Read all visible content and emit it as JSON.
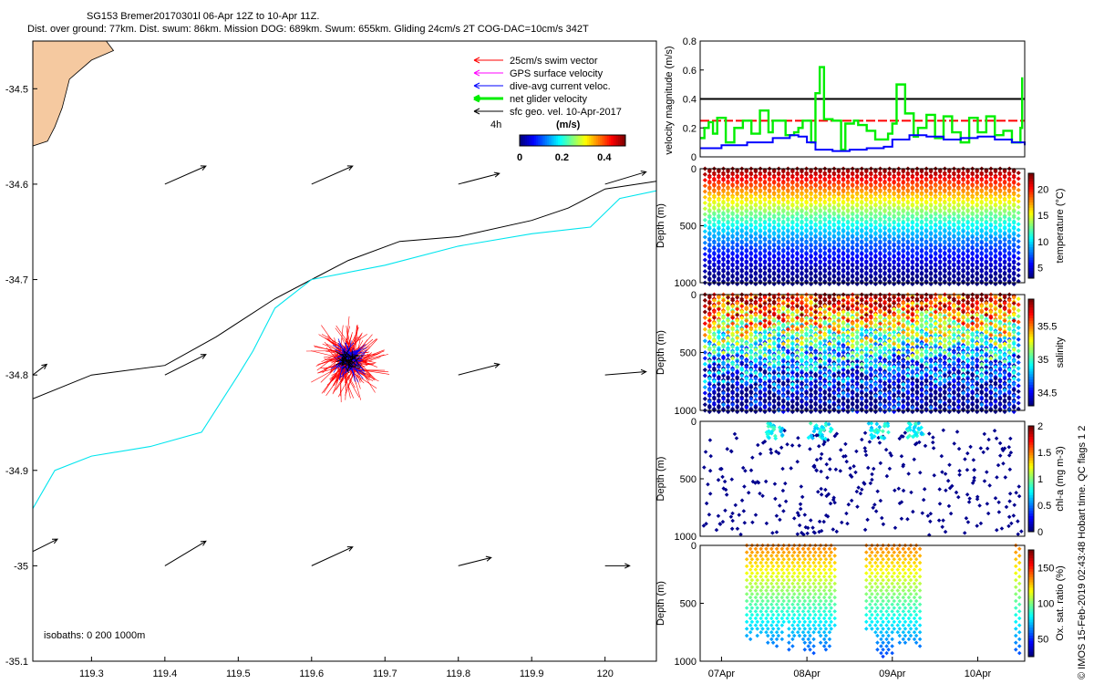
{
  "header": {
    "title_line1": "SG153 Bremer20170301l 06-Apr 12Z to 10-Apr 11Z.",
    "title_line2": "Dist. over ground: 77km. Dist. swum: 86km. Mission DOG: 689km. Swum: 655km. Gliding 24cm/s 2T COG-DAC=10cm/s 342T"
  },
  "credit": "© IMOS 15-Feb-2019 02:43:48 Hobart time. QC flags 1  2",
  "colors": {
    "swim": "#ff0000",
    "gps": "#ff00ff",
    "dac": "#0000ff",
    "net": "#00ee00",
    "geo": "#000000",
    "land": "#f5c9a0",
    "isobath": "#00e5ee"
  },
  "chart_data": [
    {
      "type": "map",
      "xlim": [
        119.22,
        120.07
      ],
      "ylim": [
        -35.1,
        -34.45
      ],
      "x_ticks": [
        "119.3",
        "119.4",
        "119.5",
        "119.6",
        "119.7",
        "119.8",
        "119.9",
        "120"
      ],
      "y_ticks": [
        "-34.5",
        "-34.6",
        "-34.7",
        "-34.8",
        "-34.9",
        "-35",
        "-35.1"
      ],
      "legend": [
        {
          "label": "25cm/s swim vector",
          "color": "#ff0000"
        },
        {
          "label": "GPS surface velocity",
          "color": "#ff00ff"
        },
        {
          "label": "dive-avg current veloc.",
          "color": "#0000ff"
        },
        {
          "label": "net glider velocity",
          "color": "#00ee00"
        },
        {
          "label": "sfc geo. vel. 10-Apr-2017",
          "color": "#000000"
        }
      ],
      "legend_note": "4h",
      "colorbar": {
        "title": "(m/s)",
        "ticks": [
          "0",
          "0.2",
          "0.4"
        ],
        "range": [
          0,
          0.5
        ]
      },
      "isobath_label": "isobaths: 0   200  1000m",
      "isobath_200": [
        [
          119.22,
          -34.825
        ],
        [
          119.3,
          -34.8
        ],
        [
          119.4,
          -34.79
        ],
        [
          119.47,
          -34.76
        ],
        [
          119.55,
          -34.72
        ],
        [
          119.6,
          -34.7
        ],
        [
          119.65,
          -34.68
        ],
        [
          119.72,
          -34.66
        ],
        [
          119.8,
          -34.655
        ],
        [
          119.9,
          -34.638
        ],
        [
          119.95,
          -34.625
        ],
        [
          120.0,
          -34.605
        ],
        [
          120.07,
          -34.597
        ]
      ],
      "isobath_1000": [
        [
          119.22,
          -34.94
        ],
        [
          119.25,
          -34.9
        ],
        [
          119.3,
          -34.885
        ],
        [
          119.38,
          -34.875
        ],
        [
          119.45,
          -34.86
        ],
        [
          119.5,
          -34.8
        ],
        [
          119.52,
          -34.775
        ],
        [
          119.55,
          -34.73
        ],
        [
          119.6,
          -34.7
        ],
        [
          119.7,
          -34.685
        ],
        [
          119.8,
          -34.665
        ],
        [
          119.9,
          -34.652
        ],
        [
          119.98,
          -34.645
        ],
        [
          120.02,
          -34.615
        ],
        [
          120.07,
          -34.607
        ]
      ],
      "coast": [
        [
          119.22,
          -34.45
        ],
        [
          119.32,
          -34.45
        ],
        [
          119.33,
          -34.46
        ],
        [
          119.3,
          -34.47
        ],
        [
          119.27,
          -34.49
        ],
        [
          119.26,
          -34.52
        ],
        [
          119.25,
          -34.54
        ],
        [
          119.24,
          -34.555
        ],
        [
          119.22,
          -34.56
        ]
      ],
      "geo_arrows": [
        {
          "lon": 119.4,
          "lat": -34.6,
          "u": 0.5,
          "v": 0.22
        },
        {
          "lon": 119.6,
          "lat": -34.6,
          "u": 0.5,
          "v": 0.22
        },
        {
          "lon": 119.8,
          "lat": -34.6,
          "u": 0.5,
          "v": 0.13
        },
        {
          "lon": 120.0,
          "lat": -34.6,
          "u": 0.5,
          "v": 0.15
        },
        {
          "lon": 119.22,
          "lat": -34.8,
          "u": 0.17,
          "v": 0.13
        },
        {
          "lon": 119.4,
          "lat": -34.8,
          "u": 0.5,
          "v": 0.25
        },
        {
          "lon": 119.8,
          "lat": -34.8,
          "u": 0.5,
          "v": 0.13
        },
        {
          "lon": 120.0,
          "lat": -34.8,
          "u": 0.5,
          "v": 0.04
        },
        {
          "lon": 119.22,
          "lat": -34.985,
          "u": 0.3,
          "v": 0.15
        },
        {
          "lon": 119.4,
          "lat": -35.0,
          "u": 0.5,
          "v": 0.3
        },
        {
          "lon": 119.6,
          "lat": -35.0,
          "u": 0.5,
          "v": 0.23
        },
        {
          "lon": 119.8,
          "lat": -35.0,
          "u": 0.4,
          "v": 0.1
        },
        {
          "lon": 120.0,
          "lat": -35.0,
          "u": 0.3,
          "v": 0.0
        }
      ],
      "glider_center": {
        "lon": 119.65,
        "lat": -34.785
      }
    },
    {
      "type": "line",
      "ylabel": "velocity magnitude (m/s)",
      "ylim": [
        0,
        0.8
      ],
      "y_ticks": [
        "0",
        "0.2",
        "0.4",
        "0.6",
        "0.8"
      ],
      "x_range_days": [
        6.75,
        10.55
      ],
      "x_ticks": [
        "07Apr",
        "08Apr",
        "09Apr",
        "10Apr"
      ],
      "reference_lines": [
        {
          "value": 0.4,
          "color": "#000000"
        },
        {
          "value": 0.25,
          "color": "#ff0000"
        }
      ],
      "series": [
        {
          "name": "net glider velocity",
          "color": "#00ee00",
          "x": [
            6.75,
            6.8,
            6.85,
            6.9,
            6.95,
            7.05,
            7.15,
            7.25,
            7.35,
            7.45,
            7.55,
            7.6,
            7.65,
            7.75,
            7.85,
            7.9,
            7.95,
            8.05,
            8.1,
            8.15,
            8.2,
            8.3,
            8.4,
            8.45,
            8.55,
            8.6,
            8.7,
            8.8,
            8.85,
            8.95,
            9.0,
            9.05,
            9.15,
            9.25,
            9.3,
            9.4,
            9.5,
            9.6,
            9.7,
            9.8,
            9.9,
            10.0,
            10.1,
            10.2,
            10.3,
            10.4,
            10.5,
            10.52
          ],
          "values": [
            0.13,
            0.2,
            0.24,
            0.16,
            0.27,
            0.1,
            0.2,
            0.25,
            0.16,
            0.32,
            0.17,
            0.25,
            0.25,
            0.15,
            0.17,
            0.2,
            0.25,
            0.1,
            0.44,
            0.62,
            0.26,
            0.25,
            0.05,
            0.23,
            0.25,
            0.22,
            0.18,
            0.12,
            0.12,
            0.16,
            0.23,
            0.5,
            0.3,
            0.14,
            0.2,
            0.29,
            0.13,
            0.28,
            0.17,
            0.1,
            0.27,
            0.17,
            0.28,
            0.15,
            0.18,
            0.1,
            0.2,
            0.55
          ]
        },
        {
          "name": "dive-avg current",
          "color": "#0000ff",
          "x": [
            6.75,
            7.0,
            7.3,
            7.6,
            7.8,
            7.9,
            8.0,
            8.1,
            8.3,
            8.5,
            8.7,
            8.8,
            8.9,
            9.0,
            9.2,
            9.4,
            9.6,
            9.8,
            10.0,
            10.2,
            10.4,
            10.55
          ],
          "values": [
            0.06,
            0.08,
            0.1,
            0.13,
            0.15,
            0.14,
            0.1,
            0.05,
            0.04,
            0.05,
            0.06,
            0.06,
            0.07,
            0.12,
            0.15,
            0.14,
            0.12,
            0.13,
            0.14,
            0.12,
            0.1,
            0.08
          ]
        }
      ]
    },
    {
      "type": "scatter",
      "variable": "temperature",
      "ylabel": "Depth (m)",
      "ylim": [
        0,
        1000
      ],
      "y_ticks": [
        "0",
        "500",
        "1000"
      ],
      "colorbar_label": "temperature (°C)",
      "colorbar_ticks": [
        "5",
        "10",
        "15",
        "20"
      ],
      "color_range": [
        3,
        23
      ],
      "profile_count": 34,
      "profile_depth": 1000
    },
    {
      "type": "scatter",
      "variable": "salinity",
      "ylabel": "Depth (m)",
      "ylim": [
        0,
        1000
      ],
      "y_ticks": [
        "0",
        "500",
        "1000"
      ],
      "colorbar_label": "salinity",
      "colorbar_ticks": [
        "34.5",
        "35",
        "35.5"
      ],
      "color_range": [
        34.3,
        35.9
      ],
      "profile_count": 34,
      "profile_depth": 1000
    },
    {
      "type": "scatter",
      "variable": "chl-a",
      "ylabel": "Depth (m)",
      "ylim": [
        0,
        1000
      ],
      "y_ticks": [
        "0",
        "500",
        "1000"
      ],
      "colorbar_label": "chl-a (mg m-3)",
      "colorbar_ticks": [
        "0",
        "0.5",
        "1",
        "1.5",
        "2"
      ],
      "color_range": [
        0,
        2
      ]
    },
    {
      "type": "scatter",
      "variable": "oxygen",
      "ylabel": "Depth (m)",
      "ylim": [
        0,
        1000
      ],
      "y_ticks": [
        "0",
        "500",
        "1000"
      ],
      "colorbar_label": "Ox. sat. ratio (%)",
      "colorbar_ticks": [
        "50",
        "100",
        "150"
      ],
      "color_range": [
        25,
        175
      ],
      "x_ticks": [
        "07Apr",
        "08Apr",
        "09Apr",
        "10Apr"
      ],
      "data_days": [
        [
          7.3,
          8.35
        ],
        [
          8.7,
          9.35
        ],
        [
          10.45,
          10.5
        ]
      ]
    }
  ]
}
